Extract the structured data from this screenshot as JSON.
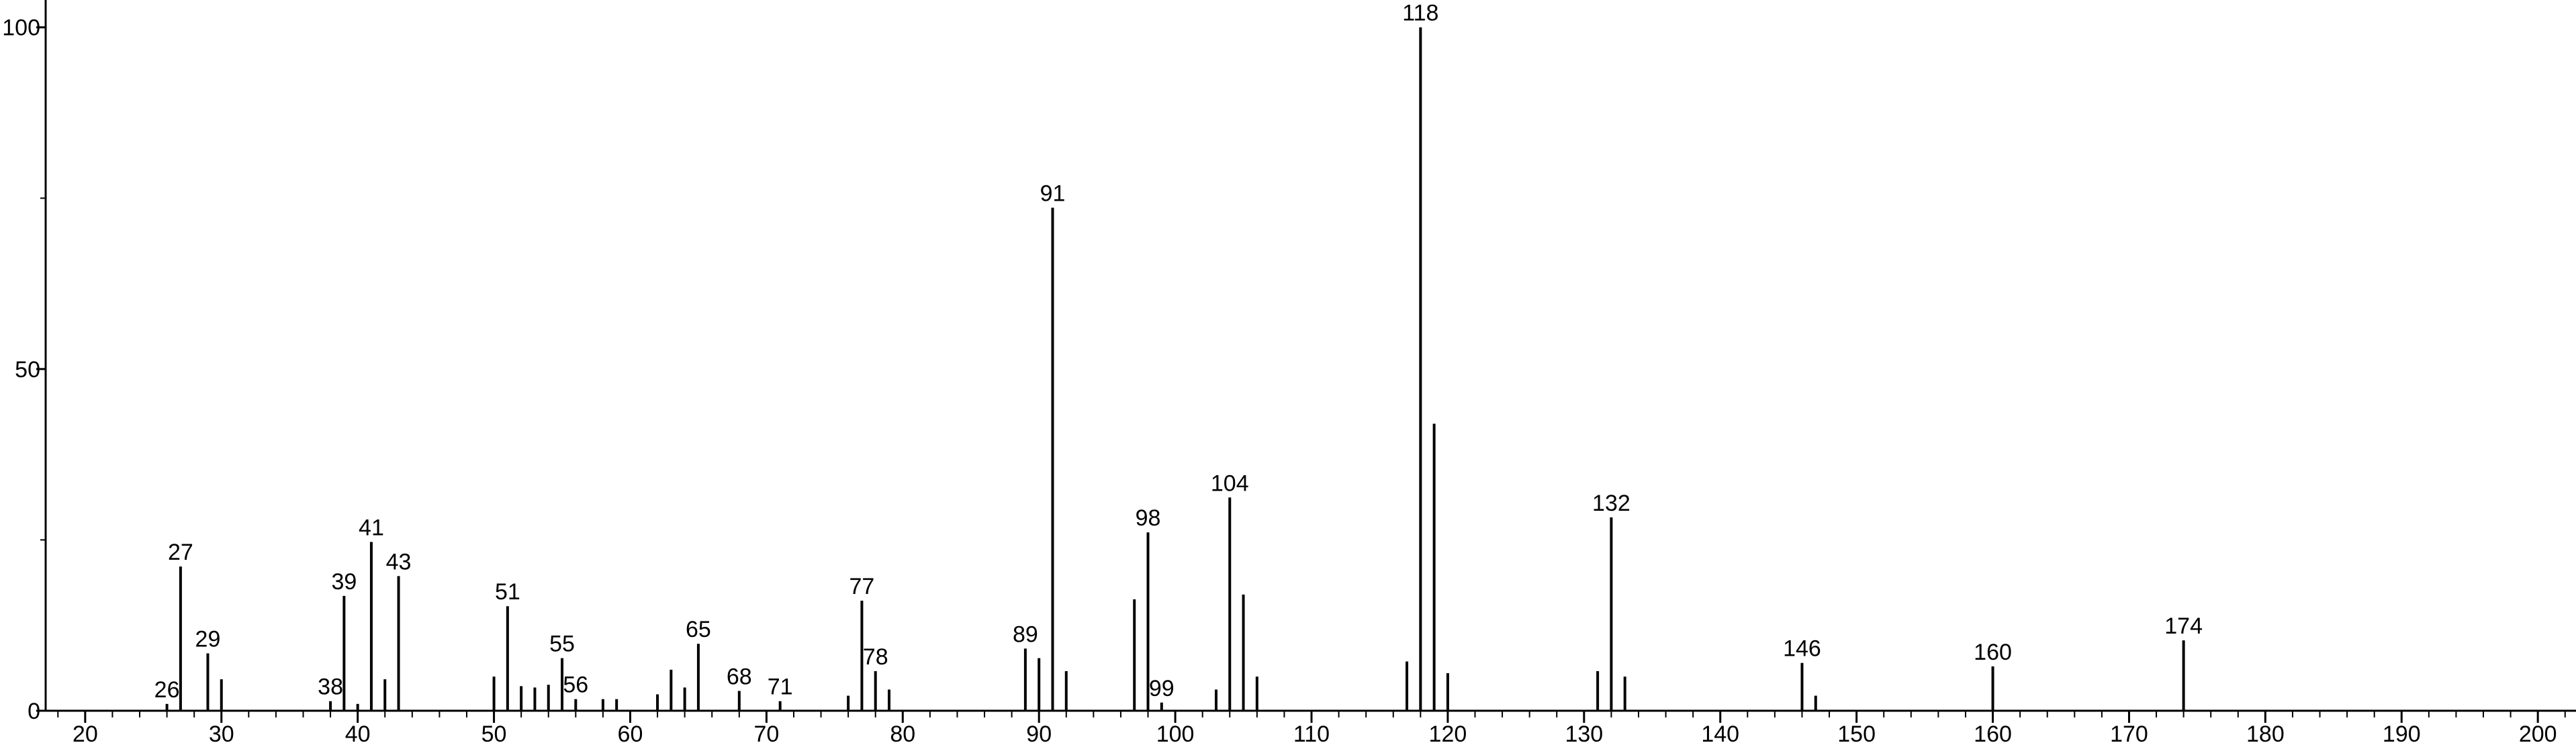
{
  "chart_data": {
    "type": "stem",
    "x": [
      26,
      27,
      29,
      30,
      38,
      39,
      40,
      41,
      42,
      43,
      50,
      51,
      52,
      53,
      54,
      55,
      56,
      58,
      59,
      62,
      63,
      64,
      65,
      68,
      71,
      76,
      77,
      78,
      79,
      89,
      90,
      91,
      92,
      97,
      98,
      99,
      103,
      104,
      105,
      106,
      117,
      118,
      119,
      120,
      131,
      132,
      133,
      146,
      147,
      160,
      174
    ],
    "values": [
      1,
      21.1,
      8.4,
      4.6,
      1.4,
      16.8,
      1,
      24.7,
      4.6,
      19.7,
      5,
      15.3,
      3.6,
      3.4,
      3.8,
      7.7,
      1.7,
      1.7,
      1.7,
      2.4,
      6,
      3.4,
      9.8,
      2.9,
      1.4,
      2.2,
      16.1,
      5.8,
      3.1,
      9.1,
      7.7,
      73.6,
      5.8,
      16.3,
      26.1,
      1.2,
      3.1,
      31.2,
      17,
      5,
      7.2,
      100,
      42,
      5.5,
      5.8,
      28.3,
      5,
      7,
      2.2,
      6.5,
      10.3
    ],
    "labels": [
      "26",
      "27",
      "29",
      null,
      "38",
      "39",
      null,
      "41",
      null,
      "43",
      null,
      "51",
      null,
      null,
      null,
      "55",
      "56",
      null,
      null,
      null,
      null,
      null,
      "65",
      "68",
      "71",
      null,
      "77",
      "78",
      null,
      "89",
      null,
      "91",
      null,
      null,
      "98",
      "99",
      null,
      "104",
      null,
      null,
      null,
      "118",
      null,
      null,
      null,
      "132",
      null,
      "146",
      null,
      "160",
      "174"
    ],
    "color": "#000000",
    "xlim": [
      17.1,
      202.8
    ],
    "ylim": [
      0,
      104
    ],
    "xticks": [
      20,
      30,
      40,
      50,
      60,
      70,
      80,
      90,
      100,
      110,
      120,
      130,
      140,
      150,
      160,
      170,
      180,
      190,
      200
    ],
    "xminorticks": [
      18,
      22,
      24,
      26,
      28,
      32,
      34,
      36,
      38,
      42,
      44,
      46,
      48,
      52,
      54,
      56,
      58,
      62,
      64,
      66,
      68,
      72,
      74,
      76,
      78,
      82,
      84,
      86,
      88,
      92,
      94,
      96,
      98,
      102,
      104,
      106,
      108,
      112,
      114,
      116,
      118,
      122,
      124,
      126,
      128,
      132,
      134,
      136,
      138,
      142,
      144,
      146,
      148,
      152,
      154,
      156,
      158,
      162,
      164,
      166,
      168,
      172,
      174,
      176,
      178,
      182,
      184,
      186,
      188,
      192,
      194,
      196,
      198,
      202
    ],
    "yticks": [
      0,
      50,
      100
    ],
    "yminorticks": [
      25,
      75
    ]
  }
}
